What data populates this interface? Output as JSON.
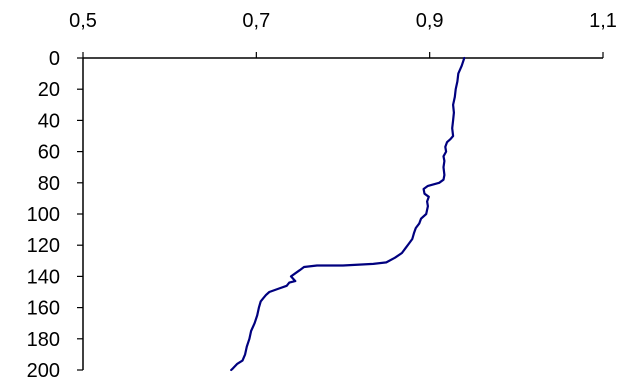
{
  "chart_data": {
    "type": "line",
    "title": "",
    "xlabel": "",
    "ylabel": "",
    "x_axis_position": "top",
    "y_axis_inverted": true,
    "xlim": [
      0.5,
      1.1
    ],
    "ylim": [
      0,
      200
    ],
    "x_ticks": [
      0.5,
      0.7,
      0.9,
      1.1
    ],
    "x_tick_labels": [
      "0,5",
      "0,7",
      "0,9",
      "1,1"
    ],
    "y_ticks": [
      0,
      20,
      40,
      60,
      80,
      100,
      120,
      140,
      160,
      180,
      200
    ],
    "y_tick_labels": [
      "0",
      "20",
      "40",
      "60",
      "80",
      "100",
      "120",
      "140",
      "160",
      "180",
      "200"
    ],
    "grid": false,
    "line_color": "#00007f",
    "series": [
      {
        "points": [
          [
            0.94,
            0
          ],
          [
            0.937,
            5
          ],
          [
            0.933,
            10
          ],
          [
            0.932,
            15
          ],
          [
            0.93,
            20
          ],
          [
            0.929,
            25
          ],
          [
            0.927,
            30
          ],
          [
            0.928,
            35
          ],
          [
            0.927,
            40
          ],
          [
            0.926,
            45
          ],
          [
            0.927,
            50
          ],
          [
            0.924,
            52
          ],
          [
            0.92,
            54
          ],
          [
            0.918,
            57
          ],
          [
            0.919,
            60
          ],
          [
            0.916,
            63
          ],
          [
            0.917,
            66
          ],
          [
            0.916,
            70
          ],
          [
            0.917,
            75
          ],
          [
            0.916,
            78
          ],
          [
            0.911,
            80
          ],
          [
            0.898,
            82
          ],
          [
            0.893,
            84
          ],
          [
            0.894,
            87
          ],
          [
            0.899,
            89
          ],
          [
            0.897,
            92
          ],
          [
            0.898,
            95
          ],
          [
            0.896,
            100
          ],
          [
            0.89,
            103
          ],
          [
            0.888,
            106
          ],
          [
            0.884,
            109
          ],
          [
            0.882,
            112
          ],
          [
            0.88,
            116
          ],
          [
            0.876,
            119
          ],
          [
            0.872,
            122
          ],
          [
            0.868,
            125
          ],
          [
            0.86,
            128
          ],
          [
            0.85,
            131
          ],
          [
            0.835,
            132
          ],
          [
            0.8,
            133
          ],
          [
            0.77,
            133
          ],
          [
            0.755,
            134
          ],
          [
            0.75,
            136
          ],
          [
            0.745,
            138
          ],
          [
            0.74,
            140
          ],
          [
            0.745,
            143
          ],
          [
            0.738,
            144
          ],
          [
            0.735,
            146
          ],
          [
            0.725,
            148
          ],
          [
            0.715,
            150
          ],
          [
            0.711,
            152
          ],
          [
            0.708,
            154
          ],
          [
            0.705,
            156
          ],
          [
            0.703,
            160
          ],
          [
            0.701,
            165
          ],
          [
            0.698,
            170
          ],
          [
            0.694,
            175
          ],
          [
            0.692,
            180
          ],
          [
            0.689,
            185
          ],
          [
            0.687,
            190
          ],
          [
            0.684,
            194
          ],
          [
            0.678,
            196
          ],
          [
            0.673,
            199
          ],
          [
            0.671,
            200
          ]
        ]
      }
    ]
  }
}
